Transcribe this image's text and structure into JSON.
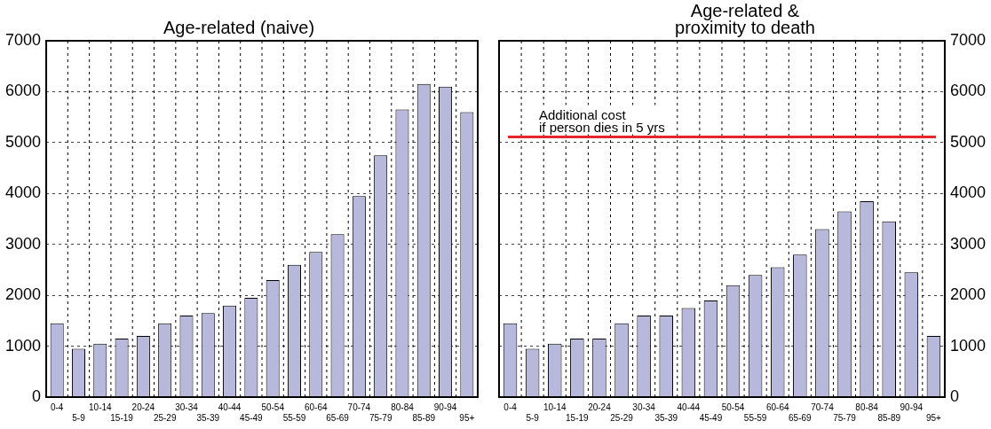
{
  "chart_data": [
    {
      "type": "bar",
      "title": "Age-related (naive)",
      "categories": [
        "0-4",
        "5-9",
        "10-14",
        "15-19",
        "20-24",
        "25-29",
        "30-34",
        "35-39",
        "40-44",
        "45-49",
        "50-54",
        "55-59",
        "60-64",
        "65-69",
        "70-74",
        "75-79",
        "80-84",
        "85-89",
        "90-94",
        "95+"
      ],
      "values": [
        1450,
        950,
        1050,
        1150,
        1200,
        1450,
        1600,
        1650,
        1800,
        1950,
        2300,
        2600,
        2850,
        3200,
        3950,
        4750,
        5650,
        6150,
        6100,
        5600
      ],
      "color": "#b8b8dc",
      "ylim": [
        0,
        7000
      ],
      "yticks": [
        0,
        1000,
        2000,
        3000,
        4000,
        5000,
        6000,
        7000
      ],
      "grid": true
    },
    {
      "type": "bar",
      "title": "Age-related &\nproximity to death",
      "categories": [
        "0-4",
        "5-9",
        "10-14",
        "15-19",
        "20-24",
        "25-29",
        "30-34",
        "35-39",
        "40-44",
        "45-49",
        "50-54",
        "55-59",
        "60-64",
        "65-69",
        "70-74",
        "75-79",
        "80-84",
        "85-89",
        "90-94",
        "95+"
      ],
      "series": [
        {
          "color": "#b8b8dc",
          "axis": "y2",
          "values": [
            1450,
            950,
            1050,
            1150,
            1150,
            1450,
            1600,
            1600,
            1750,
            1900,
            2200,
            2400,
            2550,
            2800,
            3300,
            3650,
            3850,
            3450,
            2450,
            1200
          ]
        }
      ],
      "y2lim": [
        0,
        7000
      ],
      "y2ticks": [
        0,
        1000,
        2000,
        3000,
        4000,
        5000,
        6000,
        7000
      ],
      "grid": true,
      "ref_lines": [
        {
          "axis": "y2",
          "value": 5110,
          "label": "Additional cost\nif person dies in 5 yrs",
          "color": "#e8252a"
        }
      ]
    }
  ]
}
